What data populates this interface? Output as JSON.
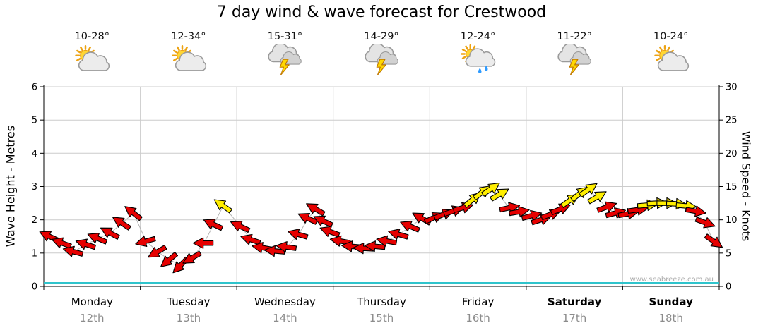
{
  "title": "7 day wind & wave forecast for Crestwood",
  "watermark": "www.seabreeze.com.au",
  "axes": {
    "left": {
      "label": "Wave Height - Metres",
      "ticks": [
        0,
        1,
        2,
        3,
        4,
        5,
        6
      ],
      "range": [
        0,
        6
      ]
    },
    "right": {
      "label": "Wind Speed - Knots",
      "ticks": [
        0,
        5,
        10,
        15,
        20,
        25,
        30
      ],
      "range": [
        0,
        30
      ]
    }
  },
  "days": [
    {
      "name": "Monday",
      "date": "12th",
      "temp": "10-28°",
      "icon": "sun-cloud",
      "bold": false
    },
    {
      "name": "Tuesday",
      "date": "13th",
      "temp": "12-34°",
      "icon": "sun-cloud",
      "bold": false
    },
    {
      "name": "Wednesday",
      "date": "14th",
      "temp": "15-31°",
      "icon": "storm",
      "bold": false
    },
    {
      "name": "Thursday",
      "date": "15th",
      "temp": "14-29°",
      "icon": "storm",
      "bold": false
    },
    {
      "name": "Friday",
      "date": "16th",
      "temp": "12-24°",
      "icon": "sun-rain",
      "bold": false
    },
    {
      "name": "Saturday",
      "date": "17th",
      "temp": "11-22°",
      "icon": "storm",
      "bold": true
    },
    {
      "name": "Sunday",
      "date": "18th",
      "temp": "10-24°",
      "icon": "sun-cloud",
      "bold": true
    }
  ],
  "colors": {
    "arrow_red": "#e60000",
    "arrow_yellow": "#ffee00",
    "arrow_outline": "#000000",
    "wave_line": "#2fc4cc",
    "grid": "#cccccc",
    "axis": "#000000",
    "date_text": "#8c8c8c",
    "watermark_text": "#aaaaaa",
    "trend_line": "#b4b4b4"
  },
  "chart_data": {
    "type": "scatter",
    "subtype": "wind-arrow-forecast",
    "title": "7 day wind & wave forecast for Crestwood",
    "xlabel": "",
    "ylabel_left": "Wave Height - Metres",
    "ylabel_right": "Wind Speed - Knots",
    "ylim_wave": [
      0,
      6
    ],
    "ylim_wind": [
      0,
      30
    ],
    "grid": true,
    "x_categories": [
      "Monday",
      "Tuesday",
      "Wednesday",
      "Thursday",
      "Friday",
      "Saturday",
      "Sunday"
    ],
    "wave_height_m": 0.1,
    "color_rule": "arrows yellow when wind >= 12 knots, else red; t is fractional day (0 = Monday 00:00); dir is arrow heading in degrees clockwise from east",
    "wind_points": [
      {
        "t": 0.06,
        "kn": 7.5,
        "dir": 205,
        "c": "red"
      },
      {
        "t": 0.19,
        "kn": 6.5,
        "dir": 200,
        "c": "red"
      },
      {
        "t": 0.31,
        "kn": 5.2,
        "dir": 195,
        "c": "red"
      },
      {
        "t": 0.44,
        "kn": 6.3,
        "dir": 198,
        "c": "red"
      },
      {
        "t": 0.56,
        "kn": 7.2,
        "dir": 203,
        "c": "red"
      },
      {
        "t": 0.69,
        "kn": 8.0,
        "dir": 208,
        "c": "red"
      },
      {
        "t": 0.81,
        "kn": 9.5,
        "dir": 213,
        "c": "red"
      },
      {
        "t": 0.93,
        "kn": 11.0,
        "dir": 218,
        "c": "red"
      },
      {
        "t": 1.06,
        "kn": 6.8,
        "dir": 165,
        "c": "red"
      },
      {
        "t": 1.18,
        "kn": 5.2,
        "dir": 150,
        "c": "red"
      },
      {
        "t": 1.3,
        "kn": 4.0,
        "dir": 140,
        "c": "red"
      },
      {
        "t": 1.42,
        "kn": 3.2,
        "dir": 135,
        "c": "red"
      },
      {
        "t": 1.54,
        "kn": 4.3,
        "dir": 150,
        "c": "red"
      },
      {
        "t": 1.66,
        "kn": 6.5,
        "dir": 180,
        "c": "red"
      },
      {
        "t": 1.76,
        "kn": 9.3,
        "dir": 205,
        "c": "red"
      },
      {
        "t": 1.86,
        "kn": 12.1,
        "dir": 215,
        "c": "yellow"
      },
      {
        "t": 2.04,
        "kn": 9.0,
        "dir": 205,
        "c": "red"
      },
      {
        "t": 2.15,
        "kn": 7.0,
        "dir": 198,
        "c": "red"
      },
      {
        "t": 2.27,
        "kn": 5.8,
        "dir": 190,
        "c": "red"
      },
      {
        "t": 2.4,
        "kn": 5.3,
        "dir": 185,
        "c": "red"
      },
      {
        "t": 2.52,
        "kn": 5.9,
        "dir": 188,
        "c": "red"
      },
      {
        "t": 2.64,
        "kn": 7.8,
        "dir": 196,
        "c": "red"
      },
      {
        "t": 2.74,
        "kn": 10.2,
        "dir": 205,
        "c": "red"
      },
      {
        "t": 2.82,
        "kn": 11.6,
        "dir": 210,
        "c": "red"
      },
      {
        "t": 2.9,
        "kn": 9.8,
        "dir": 205,
        "c": "red"
      },
      {
        "t": 2.97,
        "kn": 8.2,
        "dir": 200,
        "c": "red"
      },
      {
        "t": 3.08,
        "kn": 6.8,
        "dir": 190,
        "c": "red"
      },
      {
        "t": 3.2,
        "kn": 6.0,
        "dir": 185,
        "c": "red"
      },
      {
        "t": 3.32,
        "kn": 5.7,
        "dir": 183,
        "c": "red"
      },
      {
        "t": 3.44,
        "kn": 6.0,
        "dir": 185,
        "c": "red"
      },
      {
        "t": 3.56,
        "kn": 6.8,
        "dir": 190,
        "c": "red"
      },
      {
        "t": 3.68,
        "kn": 7.8,
        "dir": 196,
        "c": "red"
      },
      {
        "t": 3.8,
        "kn": 9.0,
        "dir": 203,
        "c": "red"
      },
      {
        "t": 3.92,
        "kn": 10.2,
        "dir": 210,
        "c": "red"
      },
      {
        "t": 4.04,
        "kn": 10.3,
        "dir": 335,
        "c": "red"
      },
      {
        "t": 4.14,
        "kn": 10.8,
        "dir": 338,
        "c": "red"
      },
      {
        "t": 4.24,
        "kn": 11.3,
        "dir": 341,
        "c": "red"
      },
      {
        "t": 4.34,
        "kn": 11.8,
        "dir": 344,
        "c": "red"
      },
      {
        "t": 4.44,
        "kn": 13.0,
        "dir": 320,
        "c": "yellow"
      },
      {
        "t": 4.54,
        "kn": 14.1,
        "dir": 323,
        "c": "yellow"
      },
      {
        "t": 4.63,
        "kn": 14.6,
        "dir": 326,
        "c": "yellow"
      },
      {
        "t": 4.72,
        "kn": 13.8,
        "dir": 330,
        "c": "yellow"
      },
      {
        "t": 4.82,
        "kn": 11.8,
        "dir": 348,
        "c": "red"
      },
      {
        "t": 4.92,
        "kn": 11.2,
        "dir": 350,
        "c": "red"
      },
      {
        "t": 5.05,
        "kn": 10.6,
        "dir": 345,
        "c": "red"
      },
      {
        "t": 5.15,
        "kn": 10.0,
        "dir": 342,
        "c": "red"
      },
      {
        "t": 5.25,
        "kn": 10.8,
        "dir": 340,
        "c": "red"
      },
      {
        "t": 5.35,
        "kn": 11.6,
        "dir": 338,
        "c": "red"
      },
      {
        "t": 5.45,
        "kn": 12.9,
        "dir": 325,
        "c": "yellow"
      },
      {
        "t": 5.55,
        "kn": 13.9,
        "dir": 322,
        "c": "yellow"
      },
      {
        "t": 5.64,
        "kn": 14.5,
        "dir": 325,
        "c": "yellow"
      },
      {
        "t": 5.73,
        "kn": 13.4,
        "dir": 330,
        "c": "yellow"
      },
      {
        "t": 5.83,
        "kn": 11.9,
        "dir": 340,
        "c": "red"
      },
      {
        "t": 5.92,
        "kn": 11.0,
        "dir": 345,
        "c": "red"
      },
      {
        "t": 6.05,
        "kn": 10.9,
        "dir": 350,
        "c": "red"
      },
      {
        "t": 6.15,
        "kn": 11.5,
        "dir": 352,
        "c": "red"
      },
      {
        "t": 6.25,
        "kn": 12.2,
        "dir": 355,
        "c": "yellow"
      },
      {
        "t": 6.35,
        "kn": 12.5,
        "dir": 357,
        "c": "yellow"
      },
      {
        "t": 6.45,
        "kn": 12.5,
        "dir": 0,
        "c": "yellow"
      },
      {
        "t": 6.55,
        "kn": 12.4,
        "dir": 3,
        "c": "yellow"
      },
      {
        "t": 6.65,
        "kn": 12.1,
        "dir": 5,
        "c": "yellow"
      },
      {
        "t": 6.75,
        "kn": 11.3,
        "dir": 10,
        "c": "red"
      },
      {
        "t": 6.85,
        "kn": 9.6,
        "dir": 20,
        "c": "red"
      },
      {
        "t": 6.94,
        "kn": 6.8,
        "dir": 35,
        "c": "red"
      }
    ]
  }
}
